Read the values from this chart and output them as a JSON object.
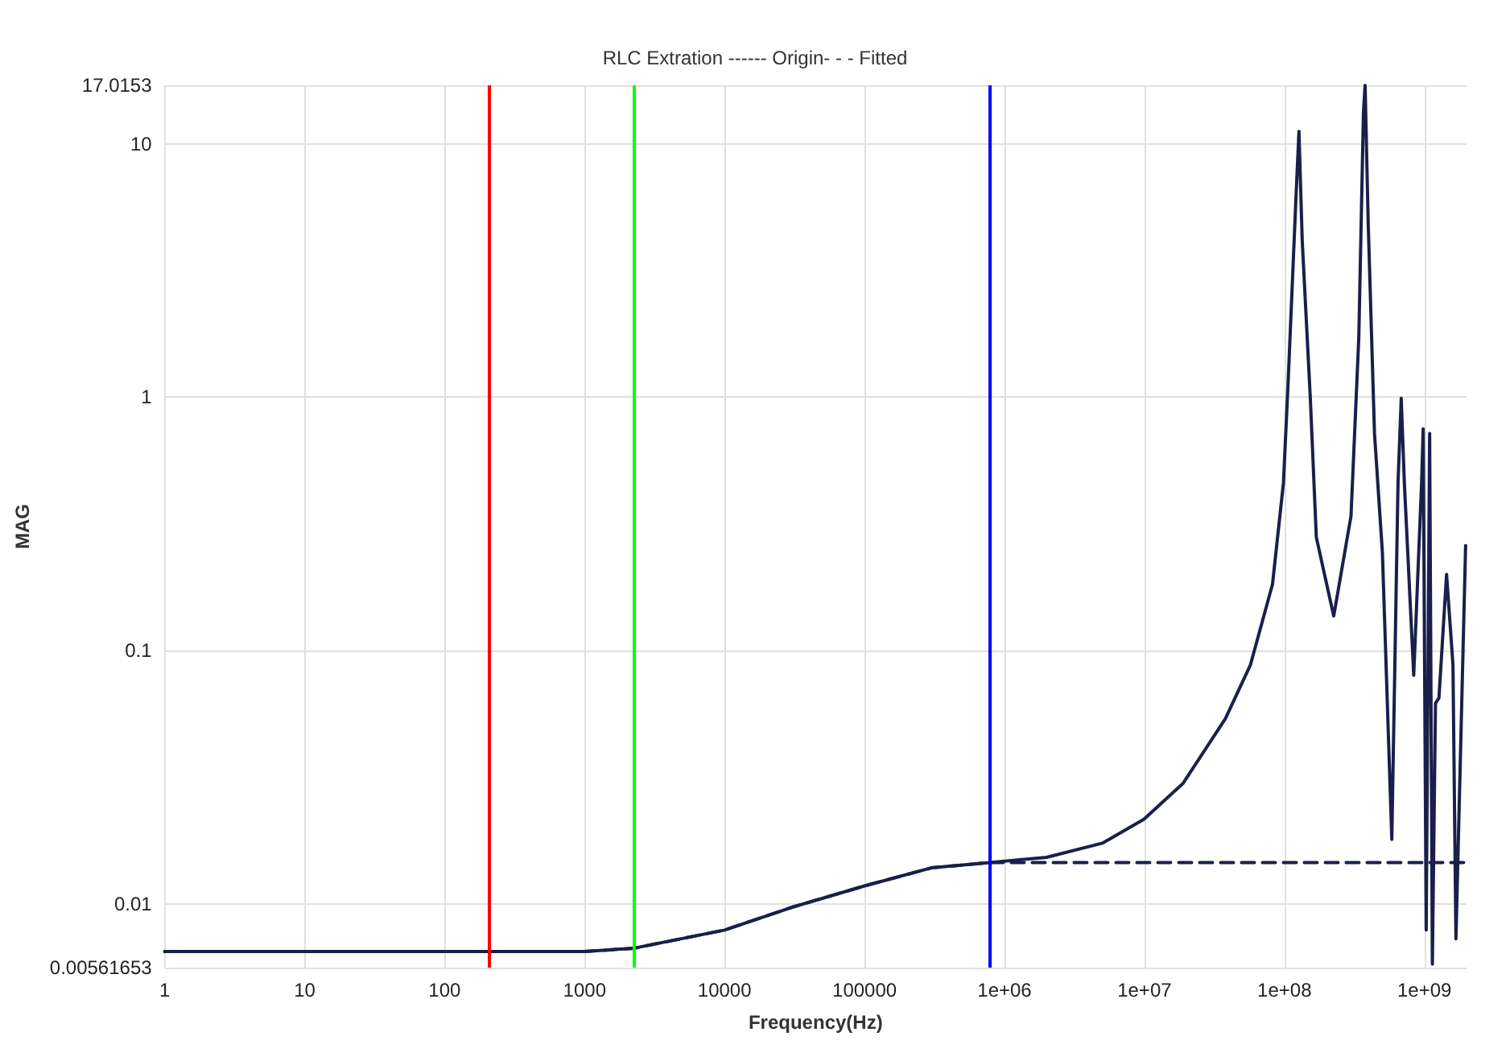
{
  "chart_data": {
    "type": "line",
    "title": "RLC Extration ------ Origin- - - Fitted",
    "xlabel": "Frequency(Hz)",
    "ylabel": "MAG",
    "log": "xy",
    "grid": true,
    "marker": "none",
    "xlim": [
      1,
      2000000000
    ],
    "xticks": [
      1,
      10,
      100,
      1000,
      10000,
      100000,
      {
        "value": 1000000,
        "label": "1e+06"
      },
      {
        "value": 10000000,
        "label": "1e+07"
      },
      {
        "value": 100000000,
        "label": "1e+08"
      },
      {
        "value": 1000000000,
        "label": "1e+09"
      }
    ],
    "ylim": [
      0.00561653,
      17.0153
    ],
    "yticks": [
      0.00561653,
      0.01,
      0.1,
      1,
      10,
      17.0153
    ],
    "series": [
      {
        "color": "#1a1f4a",
        "line_style": "solid",
        "x": [
          1,
          1000,
          2250,
          10000,
          30000,
          100000,
          300000,
          790000,
          2000000,
          5000000,
          9900000,
          18900000,
          37900000,
          57200000,
          82200000,
          98400000,
          106000000,
          121000000,
          127000000,
          134000000,
          153000000,
          169000000,
          225000000,
          299000000,
          340000000,
          367000000,
          377000000,
          397000000,
          440000000,
          501000000,
          585000000,
          648000000,
          683000000,
          719000000,
          839000000,
          955000000,
          980000000,
          1030000000,
          1090000000,
          1140000000,
          1200000000,
          1270000000,
          1440000000,
          1600000000,
          1680000000,
          1970000000
        ],
        "values": [
          0.0065,
          0.0065,
          0.0067,
          0.0079,
          0.0097,
          0.0118,
          0.0139,
          0.0146,
          0.0153,
          0.0174,
          0.0216,
          0.03,
          0.054,
          0.088,
          0.183,
          0.46,
          1.11,
          6.2,
          11.2,
          4.15,
          1.0,
          0.28,
          0.137,
          0.34,
          1.73,
          13.4,
          17.0,
          4.8,
          0.72,
          0.245,
          0.018,
          0.46,
          0.99,
          0.46,
          0.08,
          0.46,
          0.75,
          0.0079,
          0.72,
          0.0058,
          0.062,
          0.065,
          0.2,
          0.088,
          0.0073,
          0.26
        ]
      },
      {
        "color": "#1a1f4a",
        "line_style": "dashed",
        "x": [
          1,
          1000,
          2250,
          10000,
          30000,
          100000,
          300000,
          790000,
          2000000,
          1970000000
        ],
        "values": [
          0.0065,
          0.0065,
          0.0067,
          0.0079,
          0.0097,
          0.0118,
          0.0139,
          0.0146,
          0.0146,
          0.0146
        ]
      }
    ],
    "ref_lines": [
      {
        "axis": "x",
        "value": 209,
        "color": "#ff0000"
      },
      {
        "axis": "x",
        "value": 2250,
        "color": "#00ff00"
      },
      {
        "axis": "x",
        "value": 790000,
        "color": "#0000ff"
      }
    ]
  }
}
